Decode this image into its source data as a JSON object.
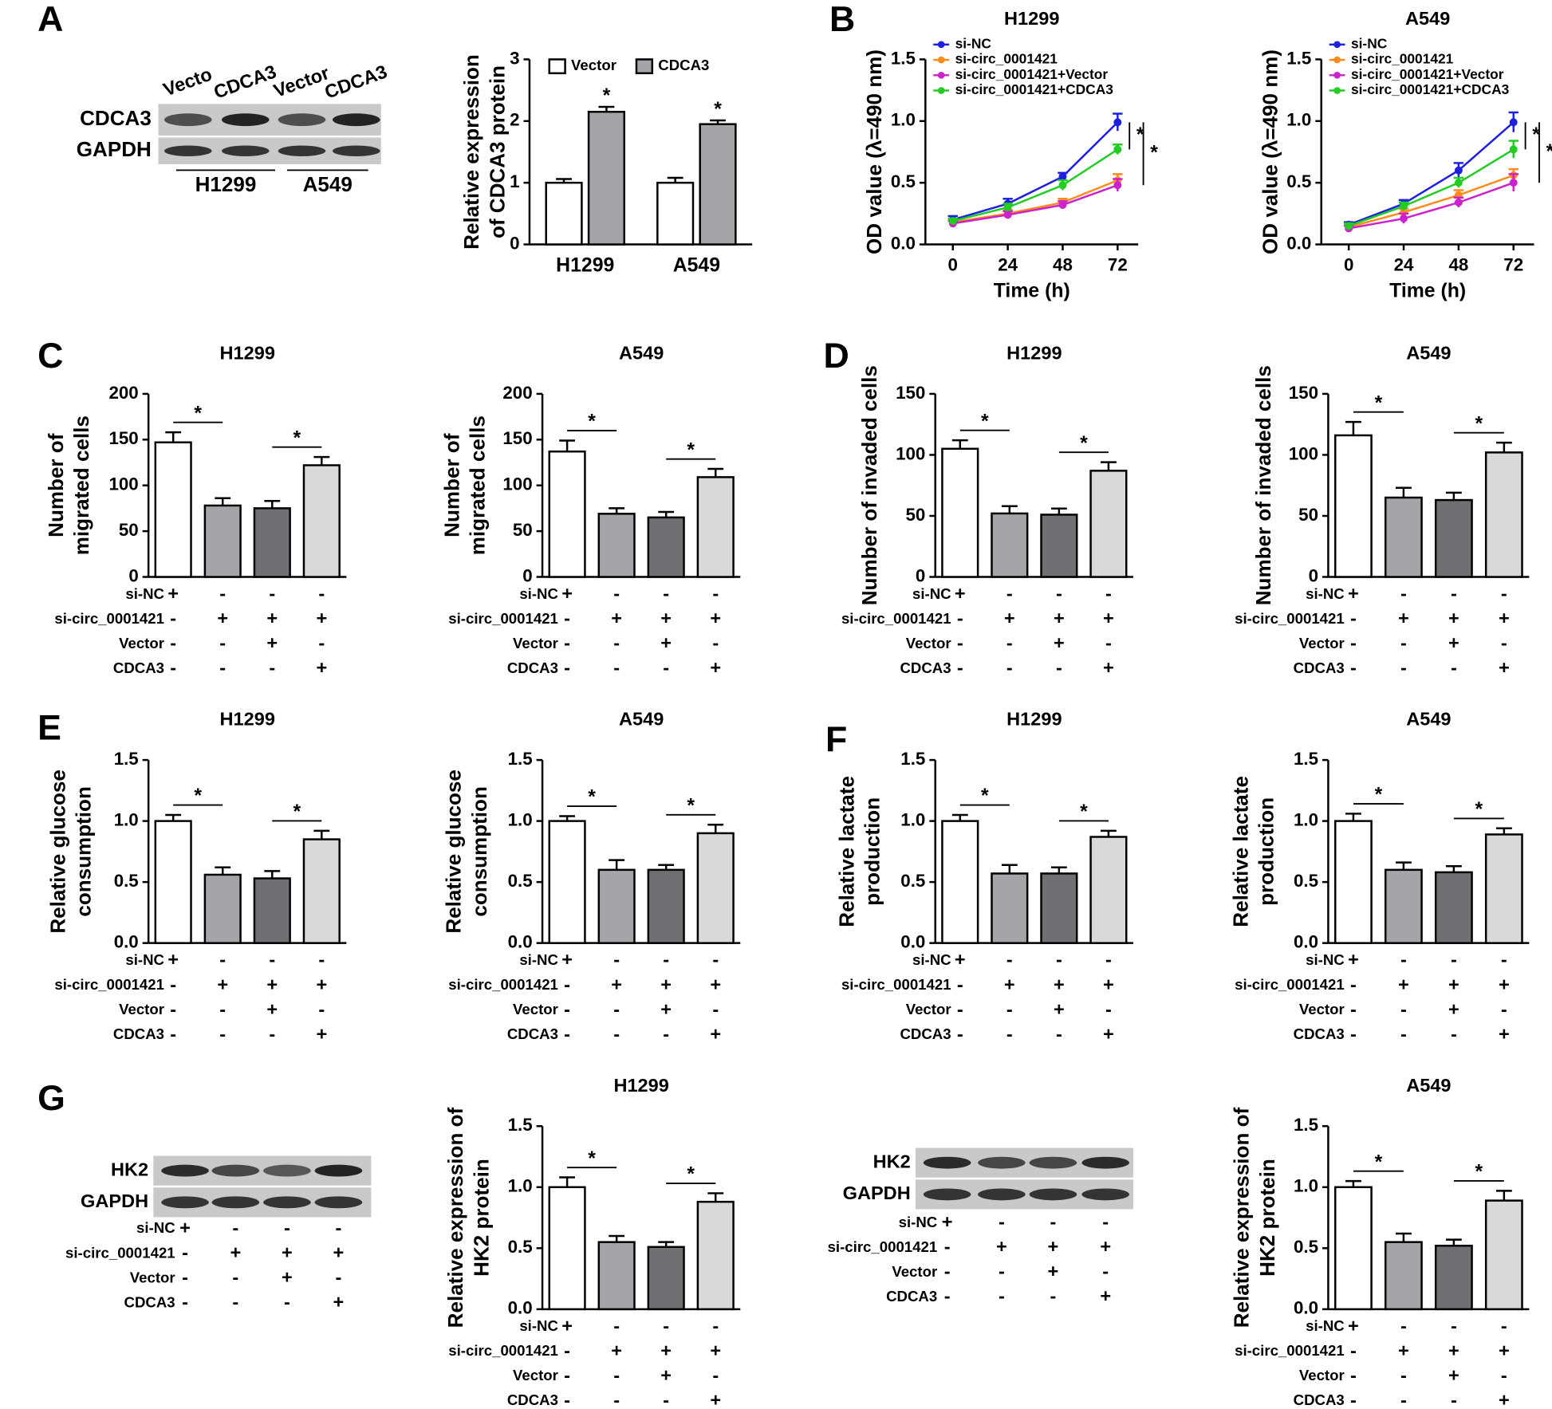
{
  "panels": [
    "A",
    "B",
    "C",
    "D",
    "E",
    "F",
    "G"
  ],
  "treatments": {
    "labels": [
      "si-NC",
      "si-circ_0001421",
      "Vector",
      "CDCA3"
    ],
    "signs": [
      [
        "+",
        "-",
        "-",
        "-"
      ],
      [
        "-",
        "+",
        "+",
        "+"
      ],
      [
        "-",
        "-",
        "+",
        "-"
      ],
      [
        "-",
        "-",
        "-",
        "+"
      ]
    ]
  },
  "blots": [
    {
      "lanes": [
        "Vecto",
        "CDCA3",
        "Vector",
        "CDCA3"
      ],
      "bands": [
        "CDCA3",
        "GAPDH"
      ],
      "groups": [
        "H1299",
        "A549"
      ]
    },
    {
      "bands": [
        "HK2",
        "GAPDH"
      ]
    },
    {
      "bands": [
        "HK2",
        "GAPDH"
      ]
    }
  ],
  "chart_data": [
    {
      "type": "bar",
      "ylabel": [
        "Relative expression",
        "of CDCA3 protein"
      ],
      "categories": [
        "H1299",
        "A549"
      ],
      "series": [
        {
          "name": "Vector",
          "color": "#ffffff",
          "values": [
            1,
            1
          ],
          "errors": [
            0.06,
            0.08
          ]
        },
        {
          "name": "CDCA3",
          "color": "#a5a5a9",
          "values": [
            2.15,
            1.95
          ],
          "errors": [
            0.08,
            0.06
          ]
        }
      ],
      "ylim": [
        0,
        3
      ],
      "yticks": [
        0,
        1,
        2,
        3
      ],
      "legend": "top",
      "significance": [
        {
          "label": "*",
          "category": 0,
          "series": 1
        },
        {
          "label": "*",
          "category": 1,
          "series": 1
        }
      ]
    },
    {
      "type": "line",
      "title": "H1299",
      "ylabel": [
        "OD value (λ=490 nm)"
      ],
      "xlabel": "Time (h)",
      "x": [
        0,
        24,
        48,
        72
      ],
      "xlim": [
        -12,
        81
      ],
      "xticks": [
        0,
        24,
        48,
        72
      ],
      "ylim": [
        0,
        1.5
      ],
      "yticks": [
        {
          "value": 0,
          "label": "0.0"
        },
        0.5,
        {
          "value": 1,
          "label": "1.0"
        },
        1.5
      ],
      "legend": "top-left",
      "series": [
        {
          "name": "si-NC",
          "color": "#1f1fe0",
          "values": [
            0.2,
            0.33,
            0.55,
            0.99
          ],
          "errors": [
            0.03,
            0.04,
            0.03,
            0.07
          ]
        },
        {
          "name": "si-circ_0001421",
          "color": "#ff8c1a",
          "values": [
            0.18,
            0.25,
            0.34,
            0.52
          ],
          "errors": [
            0.02,
            0.03,
            0.03,
            0.05
          ]
        },
        {
          "name": "si-circ_0001421+Vector",
          "color": "#cc22cc",
          "values": [
            0.17,
            0.24,
            0.32,
            0.48
          ],
          "errors": [
            0.02,
            0.03,
            0.03,
            0.05
          ]
        },
        {
          "name": "si-circ_0001421+CDCA3",
          "color": "#22cc22",
          "values": [
            0.19,
            0.3,
            0.48,
            0.77
          ],
          "errors": [
            0.02,
            0.03,
            0.04,
            0.04
          ]
        }
      ],
      "significance": [
        {
          "label": "*",
          "pair": [
            0,
            3
          ]
        },
        {
          "label": "*",
          "pair": [
            0,
            2
          ]
        }
      ]
    },
    {
      "type": "line",
      "title": "A549",
      "ylabel": [
        "OD value (λ=490 nm)"
      ],
      "xlabel": "Time (h)",
      "x": [
        0,
        24,
        48,
        72
      ],
      "xlim": [
        -12,
        81
      ],
      "xticks": [
        0,
        24,
        48,
        72
      ],
      "ylim": [
        0,
        1.5
      ],
      "yticks": [
        {
          "value": 0,
          "label": "0.0"
        },
        0.5,
        {
          "value": 1,
          "label": "1.0"
        },
        1.5
      ],
      "legend": "top-left",
      "series": [
        {
          "name": "si-NC",
          "color": "#1f1fe0",
          "values": [
            0.16,
            0.33,
            0.6,
            0.99
          ],
          "errors": [
            0.02,
            0.03,
            0.06,
            0.08
          ]
        },
        {
          "name": "si-circ_0001421",
          "color": "#ff8c1a",
          "values": [
            0.14,
            0.26,
            0.4,
            0.56
          ],
          "errors": [
            0.02,
            0.03,
            0.04,
            0.05
          ]
        },
        {
          "name": "si-circ_0001421+Vector",
          "color": "#cc22cc",
          "values": [
            0.13,
            0.21,
            0.34,
            0.5
          ],
          "errors": [
            0.02,
            0.04,
            0.04,
            0.07
          ]
        },
        {
          "name": "si-circ_0001421+CDCA3",
          "color": "#22cc22",
          "values": [
            0.15,
            0.31,
            0.5,
            0.77
          ],
          "errors": [
            0.02,
            0.03,
            0.04,
            0.07
          ]
        }
      ],
      "significance": [
        {
          "label": "*",
          "pair": [
            0,
            3
          ]
        },
        {
          "label": "*",
          "pair": [
            0,
            2
          ]
        }
      ]
    },
    {
      "type": "bar",
      "title": "H1299",
      "ylabel": [
        "Number of",
        "migrated cells"
      ],
      "categories": [
        null,
        null,
        null,
        null
      ],
      "values": [
        147,
        78,
        75,
        122
      ],
      "errors": [
        11,
        8,
        8,
        9
      ],
      "colors": [
        "#ffffff",
        "#a5a5a9",
        "#707074",
        "#d9d9d9"
      ],
      "ylim": [
        0,
        200
      ],
      "yticks": [
        0,
        50,
        100,
        150,
        200
      ],
      "significance": [
        {
          "label": "*",
          "pair": [
            0,
            1
          ]
        },
        {
          "label": "*",
          "pair": [
            2,
            3
          ]
        }
      ]
    },
    {
      "type": "bar",
      "title": "A549",
      "ylabel": [
        "Number of",
        "migrated cells"
      ],
      "categories": [
        null,
        null,
        null,
        null
      ],
      "values": [
        137,
        69,
        65,
        109
      ],
      "errors": [
        12,
        6,
        6,
        9
      ],
      "colors": [
        "#ffffff",
        "#a5a5a9",
        "#707074",
        "#d9d9d9"
      ],
      "ylim": [
        0,
        200
      ],
      "yticks": [
        0,
        50,
        100,
        150,
        200
      ],
      "significance": [
        {
          "label": "*",
          "pair": [
            0,
            1
          ]
        },
        {
          "label": "*",
          "pair": [
            2,
            3
          ]
        }
      ]
    },
    {
      "type": "bar",
      "title": "H1299",
      "ylabel": [
        "Number of invaded cells"
      ],
      "categories": [
        null,
        null,
        null,
        null
      ],
      "values": [
        105,
        52,
        51,
        87
      ],
      "errors": [
        7,
        6,
        5,
        7
      ],
      "colors": [
        "#ffffff",
        "#a5a5a9",
        "#707074",
        "#d9d9d9"
      ],
      "ylim": [
        0,
        150
      ],
      "yticks": [
        0,
        50,
        100,
        150
      ],
      "significance": [
        {
          "label": "*",
          "pair": [
            0,
            1
          ]
        },
        {
          "label": "*",
          "pair": [
            2,
            3
          ]
        }
      ]
    },
    {
      "type": "bar",
      "title": "A549",
      "ylabel": [
        "Number of invaded cells"
      ],
      "categories": [
        null,
        null,
        null,
        null
      ],
      "values": [
        116,
        65,
        63,
        102
      ],
      "errors": [
        11,
        8,
        6,
        8
      ],
      "colors": [
        "#ffffff",
        "#a5a5a9",
        "#707074",
        "#d9d9d9"
      ],
      "ylim": [
        0,
        150
      ],
      "yticks": [
        0,
        50,
        100,
        150
      ],
      "significance": [
        {
          "label": "*",
          "pair": [
            0,
            1
          ]
        },
        {
          "label": "*",
          "pair": [
            2,
            3
          ]
        }
      ]
    },
    {
      "type": "bar",
      "title": "H1299",
      "ylabel": [
        "Relative glucose",
        "consumption"
      ],
      "categories": [
        null,
        null,
        null,
        null
      ],
      "values": [
        1,
        0.56,
        0.53,
        0.85
      ],
      "errors": [
        0.05,
        0.06,
        0.06,
        0.07
      ],
      "colors": [
        "#ffffff",
        "#a5a5a9",
        "#707074",
        "#d9d9d9"
      ],
      "ylim": [
        0,
        1.5
      ],
      "yticks": [
        {
          "value": 0,
          "label": "0.0"
        },
        0.5,
        {
          "value": 1,
          "label": "1.0"
        },
        1.5
      ],
      "significance": [
        {
          "label": "*",
          "pair": [
            0,
            1
          ]
        },
        {
          "label": "*",
          "pair": [
            2,
            3
          ]
        }
      ]
    },
    {
      "type": "bar",
      "title": "A549",
      "ylabel": [
        "Relative glucose",
        "consumption"
      ],
      "categories": [
        null,
        null,
        null,
        null
      ],
      "values": [
        1,
        0.6,
        0.6,
        0.9
      ],
      "errors": [
        0.04,
        0.08,
        0.04,
        0.07
      ],
      "colors": [
        "#ffffff",
        "#a5a5a9",
        "#707074",
        "#d9d9d9"
      ],
      "ylim": [
        0,
        1.5
      ],
      "yticks": [
        {
          "value": 0,
          "label": "0.0"
        },
        0.5,
        {
          "value": 1,
          "label": "1.0"
        },
        1.5
      ],
      "significance": [
        {
          "label": "*",
          "pair": [
            0,
            1
          ]
        },
        {
          "label": "*",
          "pair": [
            2,
            3
          ]
        }
      ]
    },
    {
      "type": "bar",
      "title": "H1299",
      "ylabel": [
        "Relative lactate",
        "production"
      ],
      "categories": [
        null,
        null,
        null,
        null
      ],
      "values": [
        1,
        0.57,
        0.57,
        0.87
      ],
      "errors": [
        0.05,
        0.07,
        0.05,
        0.05
      ],
      "colors": [
        "#ffffff",
        "#a5a5a9",
        "#707074",
        "#d9d9d9"
      ],
      "ylim": [
        0,
        1.5
      ],
      "yticks": [
        {
          "value": 0,
          "label": "0.0"
        },
        0.5,
        {
          "value": 1,
          "label": "1.0"
        },
        1.5
      ],
      "significance": [
        {
          "label": "*",
          "pair": [
            0,
            1
          ]
        },
        {
          "label": "*",
          "pair": [
            2,
            3
          ]
        }
      ]
    },
    {
      "type": "bar",
      "title": "A549",
      "ylabel": [
        "Relative lactate",
        "production"
      ],
      "categories": [
        null,
        null,
        null,
        null
      ],
      "values": [
        1,
        0.6,
        0.58,
        0.89
      ],
      "errors": [
        0.06,
        0.06,
        0.05,
        0.05
      ],
      "colors": [
        "#ffffff",
        "#a5a5a9",
        "#707074",
        "#d9d9d9"
      ],
      "ylim": [
        0,
        1.5
      ],
      "yticks": [
        {
          "value": 0,
          "label": "0.0"
        },
        0.5,
        {
          "value": 1,
          "label": "1.0"
        },
        1.5
      ],
      "significance": [
        {
          "label": "*",
          "pair": [
            0,
            1
          ]
        },
        {
          "label": "*",
          "pair": [
            2,
            3
          ]
        }
      ]
    },
    {
      "type": "bar",
      "title": "H1299",
      "ylabel": [
        "Relative expression of",
        "HK2 protein"
      ],
      "categories": [
        null,
        null,
        null,
        null
      ],
      "values": [
        1,
        0.55,
        0.51,
        0.88
      ],
      "errors": [
        0.08,
        0.05,
        0.04,
        0.07
      ],
      "colors": [
        "#ffffff",
        "#a5a5a9",
        "#707074",
        "#d9d9d9"
      ],
      "ylim": [
        0,
        1.5
      ],
      "yticks": [
        {
          "value": 0,
          "label": "0.0"
        },
        0.5,
        {
          "value": 1,
          "label": "1.0"
        },
        1.5
      ],
      "significance": [
        {
          "label": "*",
          "pair": [
            0,
            1
          ]
        },
        {
          "label": "*",
          "pair": [
            2,
            3
          ]
        }
      ]
    },
    {
      "type": "bar",
      "title": "A549",
      "ylabel": [
        "Relative expression of",
        "HK2 protein"
      ],
      "categories": [
        null,
        null,
        null,
        null
      ],
      "values": [
        1,
        0.55,
        0.52,
        0.89
      ],
      "errors": [
        0.05,
        0.07,
        0.05,
        0.08
      ],
      "colors": [
        "#ffffff",
        "#a5a5a9",
        "#707074",
        "#d9d9d9"
      ],
      "ylim": [
        0,
        1.5
      ],
      "yticks": [
        {
          "value": 0,
          "label": "0.0"
        },
        0.5,
        {
          "value": 1,
          "label": "1.0"
        },
        1.5
      ],
      "significance": [
        {
          "label": "*",
          "pair": [
            0,
            1
          ]
        },
        {
          "label": "*",
          "pair": [
            2,
            3
          ]
        }
      ]
    }
  ]
}
